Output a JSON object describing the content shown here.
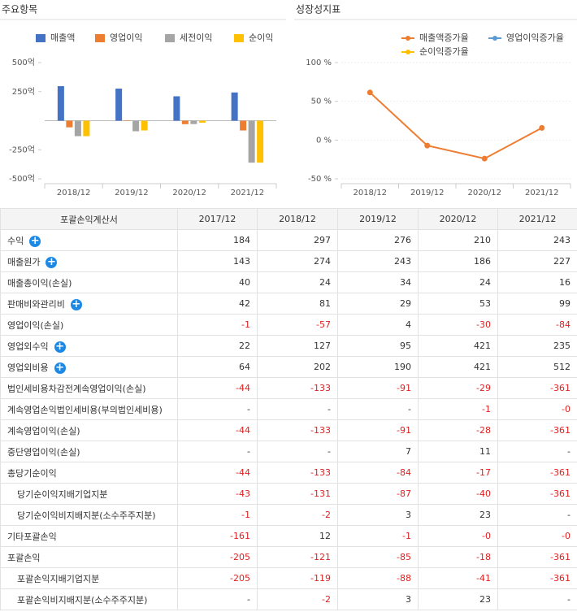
{
  "chart_data": [
    {
      "type": "bar",
      "title": "주요항목",
      "categories": [
        "2018/12",
        "2019/12",
        "2020/12",
        "2021/12"
      ],
      "series": [
        {
          "name": "매출액",
          "color": "#4472c4",
          "values": [
            297,
            276,
            210,
            243
          ]
        },
        {
          "name": "영업이익",
          "color": "#ed7d31",
          "values": [
            -57,
            4,
            -30,
            -84
          ]
        },
        {
          "name": "세전이익",
          "color": "#a5a5a5",
          "values": [
            -133,
            -91,
            -29,
            -361
          ]
        },
        {
          "name": "순이익",
          "color": "#ffc000",
          "values": [
            -133,
            -84,
            -17,
            -361
          ]
        }
      ],
      "ylim": [
        -500,
        500
      ],
      "yticks": [
        {
          "value": 500,
          "label": "500억"
        },
        {
          "value": 250,
          "label": "250억"
        },
        {
          "value": -250,
          "label": "-250억"
        },
        {
          "value": -500,
          "label": "-500억"
        }
      ]
    },
    {
      "type": "line",
      "title": "성장성지표",
      "categories": [
        "2018/12",
        "2019/12",
        "2020/12",
        "2021/12"
      ],
      "series": [
        {
          "name": "매출액증가율",
          "color": "#ed7d31",
          "values": [
            61.4,
            -7.1,
            -23.9,
            15.7
          ]
        },
        {
          "name": "영업이익증가율",
          "color": "#5b9bd5",
          "values": [
            null,
            null,
            null,
            null
          ]
        },
        {
          "name": "순이익증가율",
          "color": "#ffc000",
          "values": [
            null,
            null,
            null,
            null
          ]
        }
      ],
      "ylim": [
        -50,
        100
      ],
      "yticks": [
        {
          "value": 100,
          "label": "100 %"
        },
        {
          "value": 50,
          "label": "50 %"
        },
        {
          "value": 0,
          "label": "0 %"
        },
        {
          "value": -50,
          "label": "-50 %"
        }
      ]
    }
  ],
  "table": {
    "header": [
      "포괄손익계산서",
      "2017/12",
      "2018/12",
      "2019/12",
      "2020/12",
      "2021/12"
    ],
    "rows": [
      {
        "label": "수익",
        "expand": true,
        "values": [
          "184",
          "297",
          "276",
          "210",
          "243"
        ]
      },
      {
        "label": "매출원가",
        "expand": true,
        "values": [
          "143",
          "274",
          "243",
          "186",
          "227"
        ]
      },
      {
        "label": "매출총이익(손실)",
        "values": [
          "40",
          "24",
          "34",
          "24",
          "16"
        ]
      },
      {
        "label": "판매비와관리비",
        "expand": true,
        "values": [
          "42",
          "81",
          "29",
          "53",
          "99"
        ]
      },
      {
        "label": "영업이익(손실)",
        "values": [
          "-1",
          "-57",
          "4",
          "-30",
          "-84"
        ]
      },
      {
        "label": "영업외수익",
        "expand": true,
        "values": [
          "22",
          "127",
          "95",
          "421",
          "235"
        ]
      },
      {
        "label": "영업외비용",
        "expand": true,
        "values": [
          "64",
          "202",
          "190",
          "421",
          "512"
        ]
      },
      {
        "label": "법인세비용차감전계속영업이익(손실)",
        "values": [
          "-44",
          "-133",
          "-91",
          "-29",
          "-361"
        ]
      },
      {
        "label": "계속영업손익법인세비용(부의법인세비용)",
        "values": [
          "-",
          "-",
          "-",
          "-1",
          "-0"
        ]
      },
      {
        "label": "계속영업이익(손실)",
        "values": [
          "-44",
          "-133",
          "-91",
          "-28",
          "-361"
        ]
      },
      {
        "label": "중단영업이익(손실)",
        "values": [
          "-",
          "-",
          "7",
          "11",
          "-"
        ]
      },
      {
        "label": "총당기순이익",
        "values": [
          "-44",
          "-133",
          "-84",
          "-17",
          "-361"
        ]
      },
      {
        "label": "당기순이익지배기업지분",
        "indent": true,
        "values": [
          "-43",
          "-131",
          "-87",
          "-40",
          "-361"
        ]
      },
      {
        "label": "당기순이익비지배지분(소수주주지분)",
        "indent": true,
        "values": [
          "-1",
          "-2",
          "3",
          "23",
          "-"
        ]
      },
      {
        "label": "기타포괄손익",
        "values": [
          "-161",
          "12",
          "-1",
          "-0",
          "-0"
        ]
      },
      {
        "label": "포괄손익",
        "values": [
          "-205",
          "-121",
          "-85",
          "-18",
          "-361"
        ]
      },
      {
        "label": "포괄손익지배기업지분",
        "indent": true,
        "values": [
          "-205",
          "-119",
          "-88",
          "-41",
          "-361"
        ]
      },
      {
        "label": "포괄손익비지배지분(소수주주지분)",
        "indent": true,
        "values": [
          "-",
          "-2",
          "3",
          "23",
          "-"
        ]
      }
    ]
  }
}
